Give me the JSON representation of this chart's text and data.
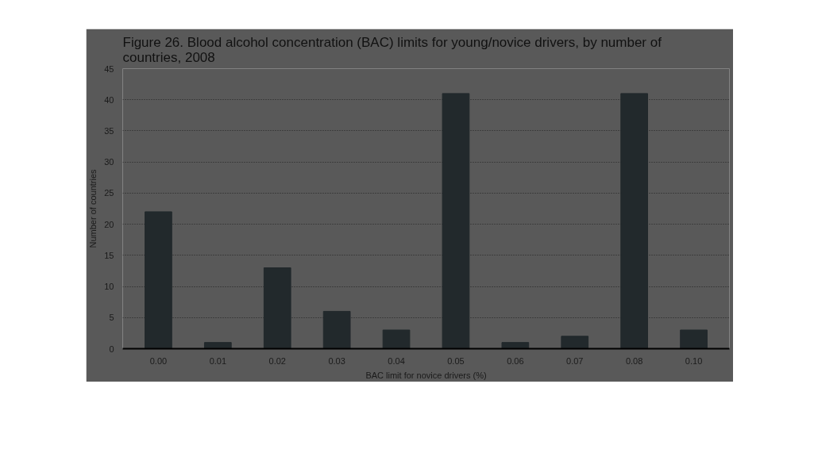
{
  "chart_data": {
    "type": "bar",
    "title": "Figure 26. Blood alcohol concentration (BAC) limits for young/novice drivers, by number of countries, 2008",
    "xlabel": "BAC limit for novice drivers (%)",
    "ylabel": "Number of countries",
    "categories": [
      "0.00",
      "0.01",
      "0.02",
      "0.03",
      "0.04",
      "0.05",
      "0.06",
      "0.07",
      "0.08",
      "0.10"
    ],
    "values": [
      22,
      1,
      13,
      6,
      3,
      41,
      1,
      2,
      41,
      3
    ],
    "color": "#22292c",
    "ylim": [
      0,
      45
    ],
    "yticks": [
      0,
      5,
      10,
      15,
      20,
      25,
      30,
      35,
      40,
      45
    ],
    "grid": "y"
  }
}
